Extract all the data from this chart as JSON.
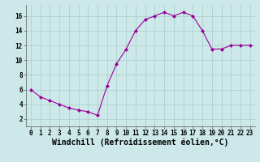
{
  "x": [
    0,
    1,
    2,
    3,
    4,
    5,
    6,
    7,
    8,
    9,
    10,
    11,
    12,
    13,
    14,
    15,
    16,
    17,
    18,
    19,
    20,
    21,
    22,
    23
  ],
  "y": [
    6.0,
    5.0,
    4.5,
    4.0,
    3.5,
    3.2,
    3.0,
    2.5,
    6.5,
    9.5,
    11.5,
    14.0,
    15.5,
    16.0,
    16.5,
    16.0,
    16.5,
    16.0,
    14.0,
    11.5,
    11.5,
    12.0,
    12.0,
    12.0
  ],
  "line_color": "#990099",
  "marker": "D",
  "marker_size": 2.0,
  "bg_color": "#cce8e8",
  "grid_color": "#aacccc",
  "xlabel": "Windchill (Refroidissement éolien,°C)",
  "xlim": [
    -0.5,
    23.5
  ],
  "ylim": [
    1.0,
    17.5
  ],
  "yticks": [
    2,
    4,
    6,
    8,
    10,
    12,
    14,
    16
  ],
  "xticks": [
    0,
    1,
    2,
    3,
    4,
    5,
    6,
    7,
    8,
    9,
    10,
    11,
    12,
    13,
    14,
    15,
    16,
    17,
    18,
    19,
    20,
    21,
    22,
    23
  ],
  "tick_label_fontsize": 5.5,
  "xlabel_fontsize": 7.0,
  "line_width": 0.8
}
